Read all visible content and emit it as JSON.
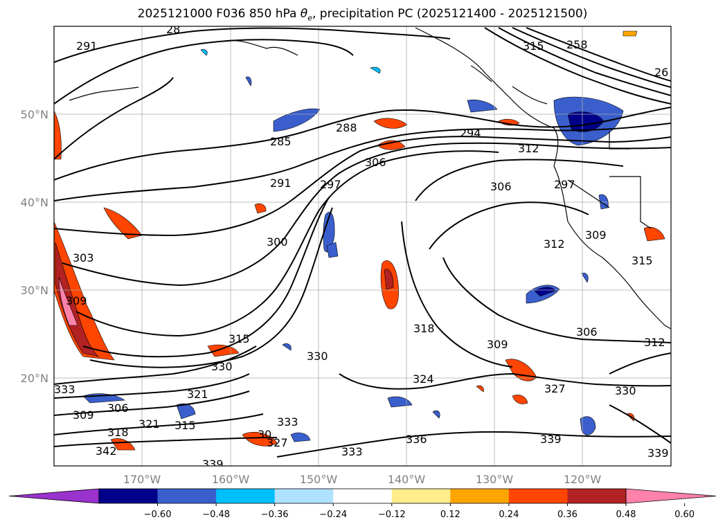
{
  "title_main": "2025121000 F036 850 hPa",
  "title_theta": "θ",
  "title_sub": "e",
  "title_rest": ", precipitation PC (2025121400 - 2025121500)",
  "lat_labels": [
    "50°N",
    "40°N",
    "30°N",
    "20°N"
  ],
  "lon_labels": [
    "170°W",
    "160°W",
    "150°W",
    "140°W",
    "130°W",
    "120°W"
  ],
  "colorbar": {
    "colors": [
      "#9a32cd",
      "#00008b",
      "#3a5fcd",
      "#00bfff",
      "#b0e2ff",
      "#ffffff",
      "#ffec8b",
      "#ffa500",
      "#ff4500",
      "#b22222",
      "#ff82ab"
    ],
    "under_color": "#9a32cd",
    "over_color": "#ff82ab",
    "ticks": [
      "−0.60",
      "−0.48",
      "−0.36",
      "−0.24",
      "−0.12",
      "0.12",
      "0.24",
      "0.36",
      "0.48",
      "0.60"
    ]
  },
  "contour_labels": [
    "291",
    "288",
    "285",
    "294",
    "312",
    "297",
    "300",
    "306",
    "306",
    "291",
    "303",
    "309",
    "258",
    "26",
    "318",
    "309",
    "324",
    "315",
    "330",
    "330",
    "327",
    "330",
    "333",
    "321",
    "315",
    "321",
    "318",
    "342",
    "333",
    "336",
    "339",
    "339",
    "333",
    "315",
    "309",
    "306",
    "312",
    "312",
    "327",
    "30",
    "339",
    "297",
    "306",
    "309",
    "315",
    "28"
  ]
}
